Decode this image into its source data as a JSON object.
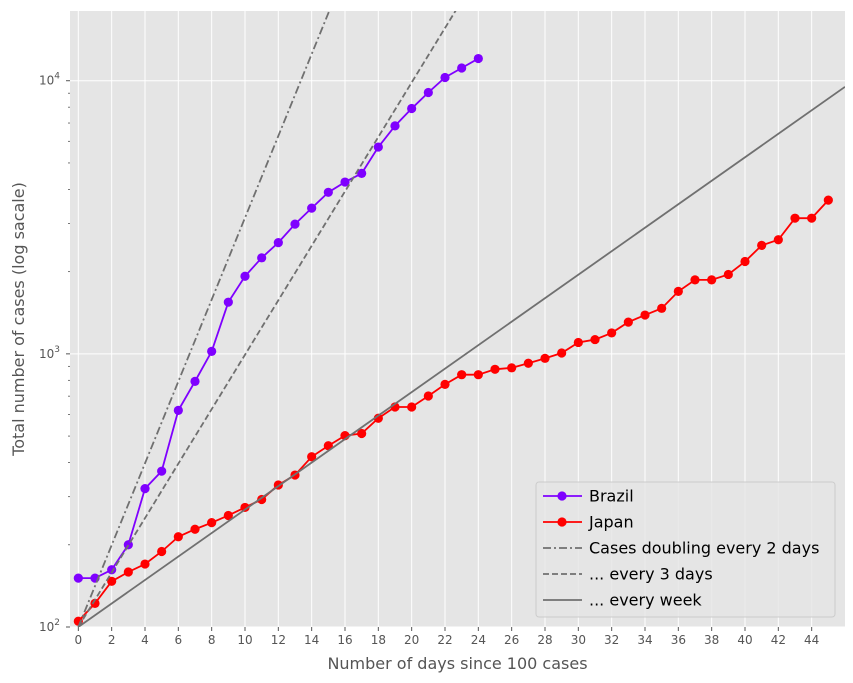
{
  "chart_data": {
    "type": "line",
    "xlabel": "Number of days since 100 cases",
    "ylabel": "Total number of cases  (log sacale)",
    "yscale": "log",
    "xlim": [
      -0.5,
      46
    ],
    "ylim": [
      100,
      18000
    ],
    "xticks": [
      0,
      2,
      4,
      6,
      8,
      10,
      12,
      14,
      16,
      18,
      20,
      22,
      24,
      26,
      28,
      30,
      32,
      34,
      36,
      38,
      40,
      42,
      44
    ],
    "xtick_labels": [
      "0",
      "2",
      "4",
      "6",
      "8",
      "10",
      "12",
      "14",
      "16",
      "18",
      "20",
      "22",
      "24",
      "26",
      "28",
      "30",
      "32",
      "34",
      "36",
      "38",
      "40",
      "42",
      "44"
    ],
    "yticks": [
      100,
      1000,
      10000
    ],
    "ytick_labels": [
      {
        "base": "10",
        "exp": "2"
      },
      {
        "base": "10",
        "exp": "3"
      },
      {
        "base": "10",
        "exp": "4"
      }
    ],
    "grid": true,
    "background": "#e5e5e5",
    "legend_position": "lower-right",
    "series": [
      {
        "name": "Brazil",
        "color": "#7f00ff",
        "marker": "circle",
        "x": [
          0,
          1,
          2,
          3,
          4,
          5,
          6,
          7,
          8,
          9,
          10,
          11,
          12,
          13,
          14,
          15,
          16,
          17,
          18,
          19,
          20,
          21,
          22,
          23,
          24
        ],
        "y": [
          151,
          151,
          162,
          200,
          321,
          372,
          621,
          793,
          1021,
          1546,
          1924,
          2247,
          2554,
          2985,
          3417,
          3904,
          4256,
          4579,
          5717,
          6836,
          7910,
          9056,
          10278,
          11130,
          12056
        ]
      },
      {
        "name": "Japan",
        "color": "#ff0000",
        "marker": "circle",
        "x": [
          0,
          1,
          2,
          3,
          4,
          5,
          6,
          7,
          8,
          9,
          10,
          11,
          12,
          13,
          14,
          15,
          16,
          17,
          18,
          19,
          20,
          21,
          22,
          23,
          24,
          25,
          26,
          27,
          28,
          29,
          30,
          31,
          32,
          33,
          34,
          35,
          36,
          37,
          38,
          39,
          40,
          41,
          42,
          43,
          44,
          45
        ],
        "y": [
          105,
          122,
          147,
          159,
          170,
          189,
          214,
          228,
          241,
          256,
          274,
          293,
          331,
          360,
          420,
          461,
          502,
          511,
          581,
          639,
          639,
          701,
          773,
          839,
          839,
          878,
          889,
          924,
          963,
          1007,
          1101,
          1128,
          1193,
          1307,
          1387,
          1468,
          1693,
          1866,
          1866,
          1953,
          2178,
          2495,
          2617,
          3139,
          3139,
          3654
        ]
      },
      {
        "name": "Cases doubling every 2 days",
        "color": "#707070",
        "style": "dashdot",
        "doubling_days": 2,
        "x": [
          0,
          15.5
        ],
        "y": [
          100,
          21000
        ]
      },
      {
        "name": "... every 3 days",
        "color": "#707070",
        "style": "dashed",
        "doubling_days": 3,
        "x": [
          0,
          23.5
        ],
        "y": [
          100,
          22000
        ]
      },
      {
        "name": "... every week",
        "color": "#707070",
        "style": "solid",
        "doubling_days": 7,
        "x": [
          0,
          46
        ],
        "y": [
          100,
          9500
        ]
      }
    ]
  }
}
